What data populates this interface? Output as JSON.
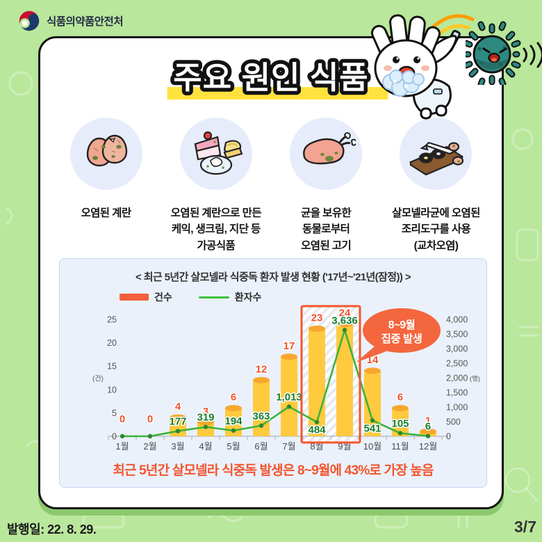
{
  "colors": {
    "background": "#b9e79b",
    "card_shadow": "#8cc96d",
    "bar_yellow": "#ffca3e",
    "bar_top": "#f7a72e",
    "line_green": "#3cb23c",
    "bar_label_orange": "#f2512b",
    "line_label_green": "#177d2d",
    "highlight_border": "#f4552c",
    "badge_bg": "#f4663e",
    "title_highlight": "#ffe23e",
    "panel_bg": "#eaf1fb"
  },
  "header": {
    "agency": "식품의약품안전처"
  },
  "main_title": "주요 원인 식품",
  "causes": [
    {
      "icon": "contaminated-eggs-icon",
      "label": "오염된 계란"
    },
    {
      "icon": "egg-products-icon",
      "label": "오염된 계란으로 만든\n케익, 생크림, 지단 등\n가공식품"
    },
    {
      "icon": "raw-meat-icon",
      "label": "균을 보유한\n동물로부터\n오염된 고기"
    },
    {
      "icon": "cutting-board-icon",
      "label": "살모넬라균에 오염된\n조리도구를 사용\n(교차오염)"
    }
  ],
  "chart_panel": {
    "title": "< 최근 5년간 살모넬라 식중독 환자 발생 현황 ('17년~'21년(잠정)) >",
    "note": "최근 5년간 살모넬라 식중독 발생은 8~9월에 43%로 가장 높음"
  },
  "chart_data": {
    "type": "bar+line",
    "title": "최근 5년간 살모넬라 식중독 환자 발생 현황 ('17년~'21년(잠정))",
    "categories": [
      "1월",
      "2월",
      "3월",
      "4월",
      "5월",
      "6월",
      "7월",
      "8월",
      "9월",
      "10월",
      "11월",
      "12월"
    ],
    "series": [
      {
        "name": "건수",
        "type": "bar",
        "axis": "left",
        "color": "#ffca3e",
        "values": [
          0,
          0,
          4,
          3,
          6,
          12,
          17,
          23,
          24,
          14,
          6,
          1
        ]
      },
      {
        "name": "환자수",
        "type": "line",
        "axis": "right",
        "color": "#3cb23c",
        "values": [
          0,
          0,
          177,
          319,
          194,
          363,
          1013,
          484,
          3636,
          541,
          105,
          6
        ],
        "label_side": [
          null,
          null,
          "above",
          "above",
          "above",
          "above",
          "above",
          "below",
          "above",
          "below",
          "above",
          "above"
        ]
      }
    ],
    "left_axis": {
      "unit": "(건)",
      "ticks": [
        0,
        5,
        10,
        15,
        20,
        25
      ],
      "max": 25
    },
    "right_axis": {
      "unit": "(명)",
      "ticks": [
        0,
        500,
        1000,
        1500,
        2000,
        2500,
        3000,
        3500,
        4000
      ],
      "max": 4000,
      "unit_at": 2000
    },
    "highlight": {
      "from": "8월",
      "to": "9월",
      "badge_lines": [
        "8~9월",
        "집중 발생"
      ]
    },
    "legend_position": "top-left",
    "grid": false
  },
  "footer": {
    "publish_date_label": "발행일: 22. 8. 29.",
    "page_indicator": "3/7"
  }
}
